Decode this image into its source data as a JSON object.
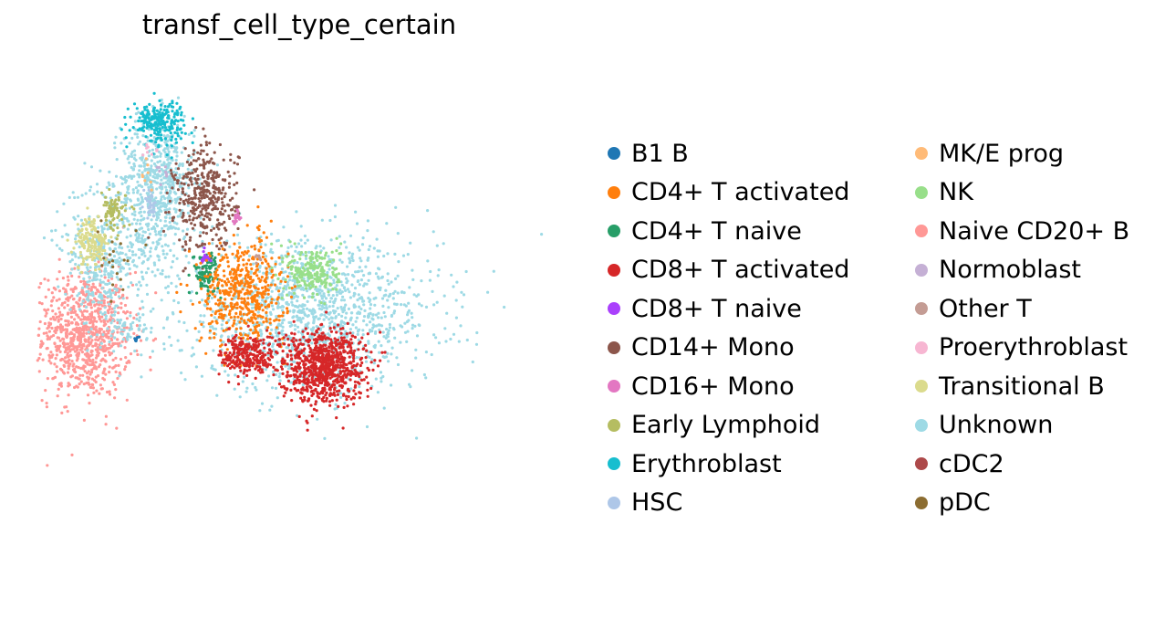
{
  "chart_data": {
    "type": "scatter",
    "title": "transf_cell_type_certain",
    "xlabel": "",
    "ylabel": "",
    "grid": false,
    "axes_visible": false,
    "legend_placement": "right",
    "legend_columns": 2,
    "categories": [
      {
        "name": "B1 B",
        "color": "#1f77b4"
      },
      {
        "name": "CD4+ T activated",
        "color": "#ff7f0e"
      },
      {
        "name": "CD4+ T naive",
        "color": "#279e68"
      },
      {
        "name": "CD8+ T activated",
        "color": "#d62728"
      },
      {
        "name": "CD8+ T naive",
        "color": "#aa40fc"
      },
      {
        "name": "CD14+ Mono",
        "color": "#8c564b"
      },
      {
        "name": "CD16+ Mono",
        "color": "#e377c2"
      },
      {
        "name": "Early Lymphoid",
        "color": "#b5bd61"
      },
      {
        "name": "Erythroblast",
        "color": "#17becf"
      },
      {
        "name": "HSC",
        "color": "#aec7e8"
      },
      {
        "name": "MK/E prog",
        "color": "#ffbb78"
      },
      {
        "name": "NK",
        "color": "#98df8a"
      },
      {
        "name": "Naive CD20+ B",
        "color": "#ff9896"
      },
      {
        "name": "Normoblast",
        "color": "#c5b0d5"
      },
      {
        "name": "Other T",
        "color": "#c49c94"
      },
      {
        "name": "Proerythroblast",
        "color": "#f7b6d2"
      },
      {
        "name": "Transitional B",
        "color": "#dbdb8d"
      },
      {
        "name": "Unknown",
        "color": "#9edae5"
      },
      {
        "name": "cDC2",
        "color": "#ad494a"
      },
      {
        "name": "pDC",
        "color": "#8c6d31"
      }
    ],
    "clusters": [
      {
        "category": "Naive CD20+ B",
        "x": 0.09,
        "y": 0.48,
        "sx": 0.045,
        "sy": 0.06,
        "n": 900
      },
      {
        "category": "Unknown",
        "x": 0.23,
        "y": 0.78,
        "sx": 0.035,
        "sy": 0.06,
        "n": 520
      },
      {
        "category": "Unknown",
        "x": 0.16,
        "y": 0.66,
        "sx": 0.06,
        "sy": 0.06,
        "n": 380
      },
      {
        "category": "Unknown",
        "x": 0.12,
        "y": 0.58,
        "sx": 0.02,
        "sy": 0.05,
        "n": 120
      },
      {
        "category": "Unknown",
        "x": 0.52,
        "y": 0.52,
        "sx": 0.12,
        "sy": 0.07,
        "n": 1300
      },
      {
        "category": "Unknown",
        "x": 0.17,
        "y": 0.49,
        "sx": 0.02,
        "sy": 0.015,
        "n": 60
      },
      {
        "category": "Erythroblast",
        "x": 0.23,
        "y": 0.89,
        "sx": 0.025,
        "sy": 0.02,
        "n": 220
      },
      {
        "category": "CD14+ Mono",
        "x": 0.32,
        "y": 0.74,
        "sx": 0.03,
        "sy": 0.05,
        "n": 380
      },
      {
        "category": "CD16+ Mono",
        "x": 0.378,
        "y": 0.705,
        "sx": 0.004,
        "sy": 0.006,
        "n": 16
      },
      {
        "category": "Early Lymphoid",
        "x": 0.145,
        "y": 0.715,
        "sx": 0.012,
        "sy": 0.018,
        "n": 80
      },
      {
        "category": "Transitional B",
        "x": 0.105,
        "y": 0.655,
        "sx": 0.015,
        "sy": 0.025,
        "n": 160
      },
      {
        "category": "CD4+ T naive",
        "x": 0.32,
        "y": 0.6,
        "sx": 0.012,
        "sy": 0.02,
        "n": 100
      },
      {
        "category": "CD8+ T naive",
        "x": 0.318,
        "y": 0.628,
        "sx": 0.006,
        "sy": 0.006,
        "n": 18
      },
      {
        "category": "CD4+ T activated",
        "x": 0.39,
        "y": 0.56,
        "sx": 0.04,
        "sy": 0.05,
        "n": 500
      },
      {
        "category": "NK",
        "x": 0.525,
        "y": 0.6,
        "sx": 0.025,
        "sy": 0.025,
        "n": 220
      },
      {
        "category": "CD8+ T activated",
        "x": 0.54,
        "y": 0.42,
        "sx": 0.04,
        "sy": 0.035,
        "n": 850
      },
      {
        "category": "CD8+ T activated",
        "x": 0.4,
        "y": 0.44,
        "sx": 0.025,
        "sy": 0.02,
        "n": 260
      },
      {
        "category": "B1 B",
        "x": 0.19,
        "y": 0.47,
        "sx": 0.003,
        "sy": 0.003,
        "n": 8
      },
      {
        "category": "HSC",
        "x": 0.215,
        "y": 0.73,
        "sx": 0.005,
        "sy": 0.015,
        "n": 30
      },
      {
        "category": "pDC",
        "x": 0.155,
        "y": 0.61,
        "sx": 0.02,
        "sy": 0.04,
        "n": 20
      },
      {
        "category": "Other T",
        "x": 0.42,
        "y": 0.63,
        "sx": 0.005,
        "sy": 0.005,
        "n": 8
      },
      {
        "category": "Proerythroblast",
        "x": 0.215,
        "y": 0.835,
        "sx": 0.01,
        "sy": 0.01,
        "n": 8
      },
      {
        "category": "MK/E prog",
        "x": 0.21,
        "y": 0.78,
        "sx": 0.006,
        "sy": 0.01,
        "n": 8
      },
      {
        "category": "Normoblast",
        "x": 0.24,
        "y": 0.79,
        "sx": 0.006,
        "sy": 0.01,
        "n": 8
      }
    ]
  }
}
